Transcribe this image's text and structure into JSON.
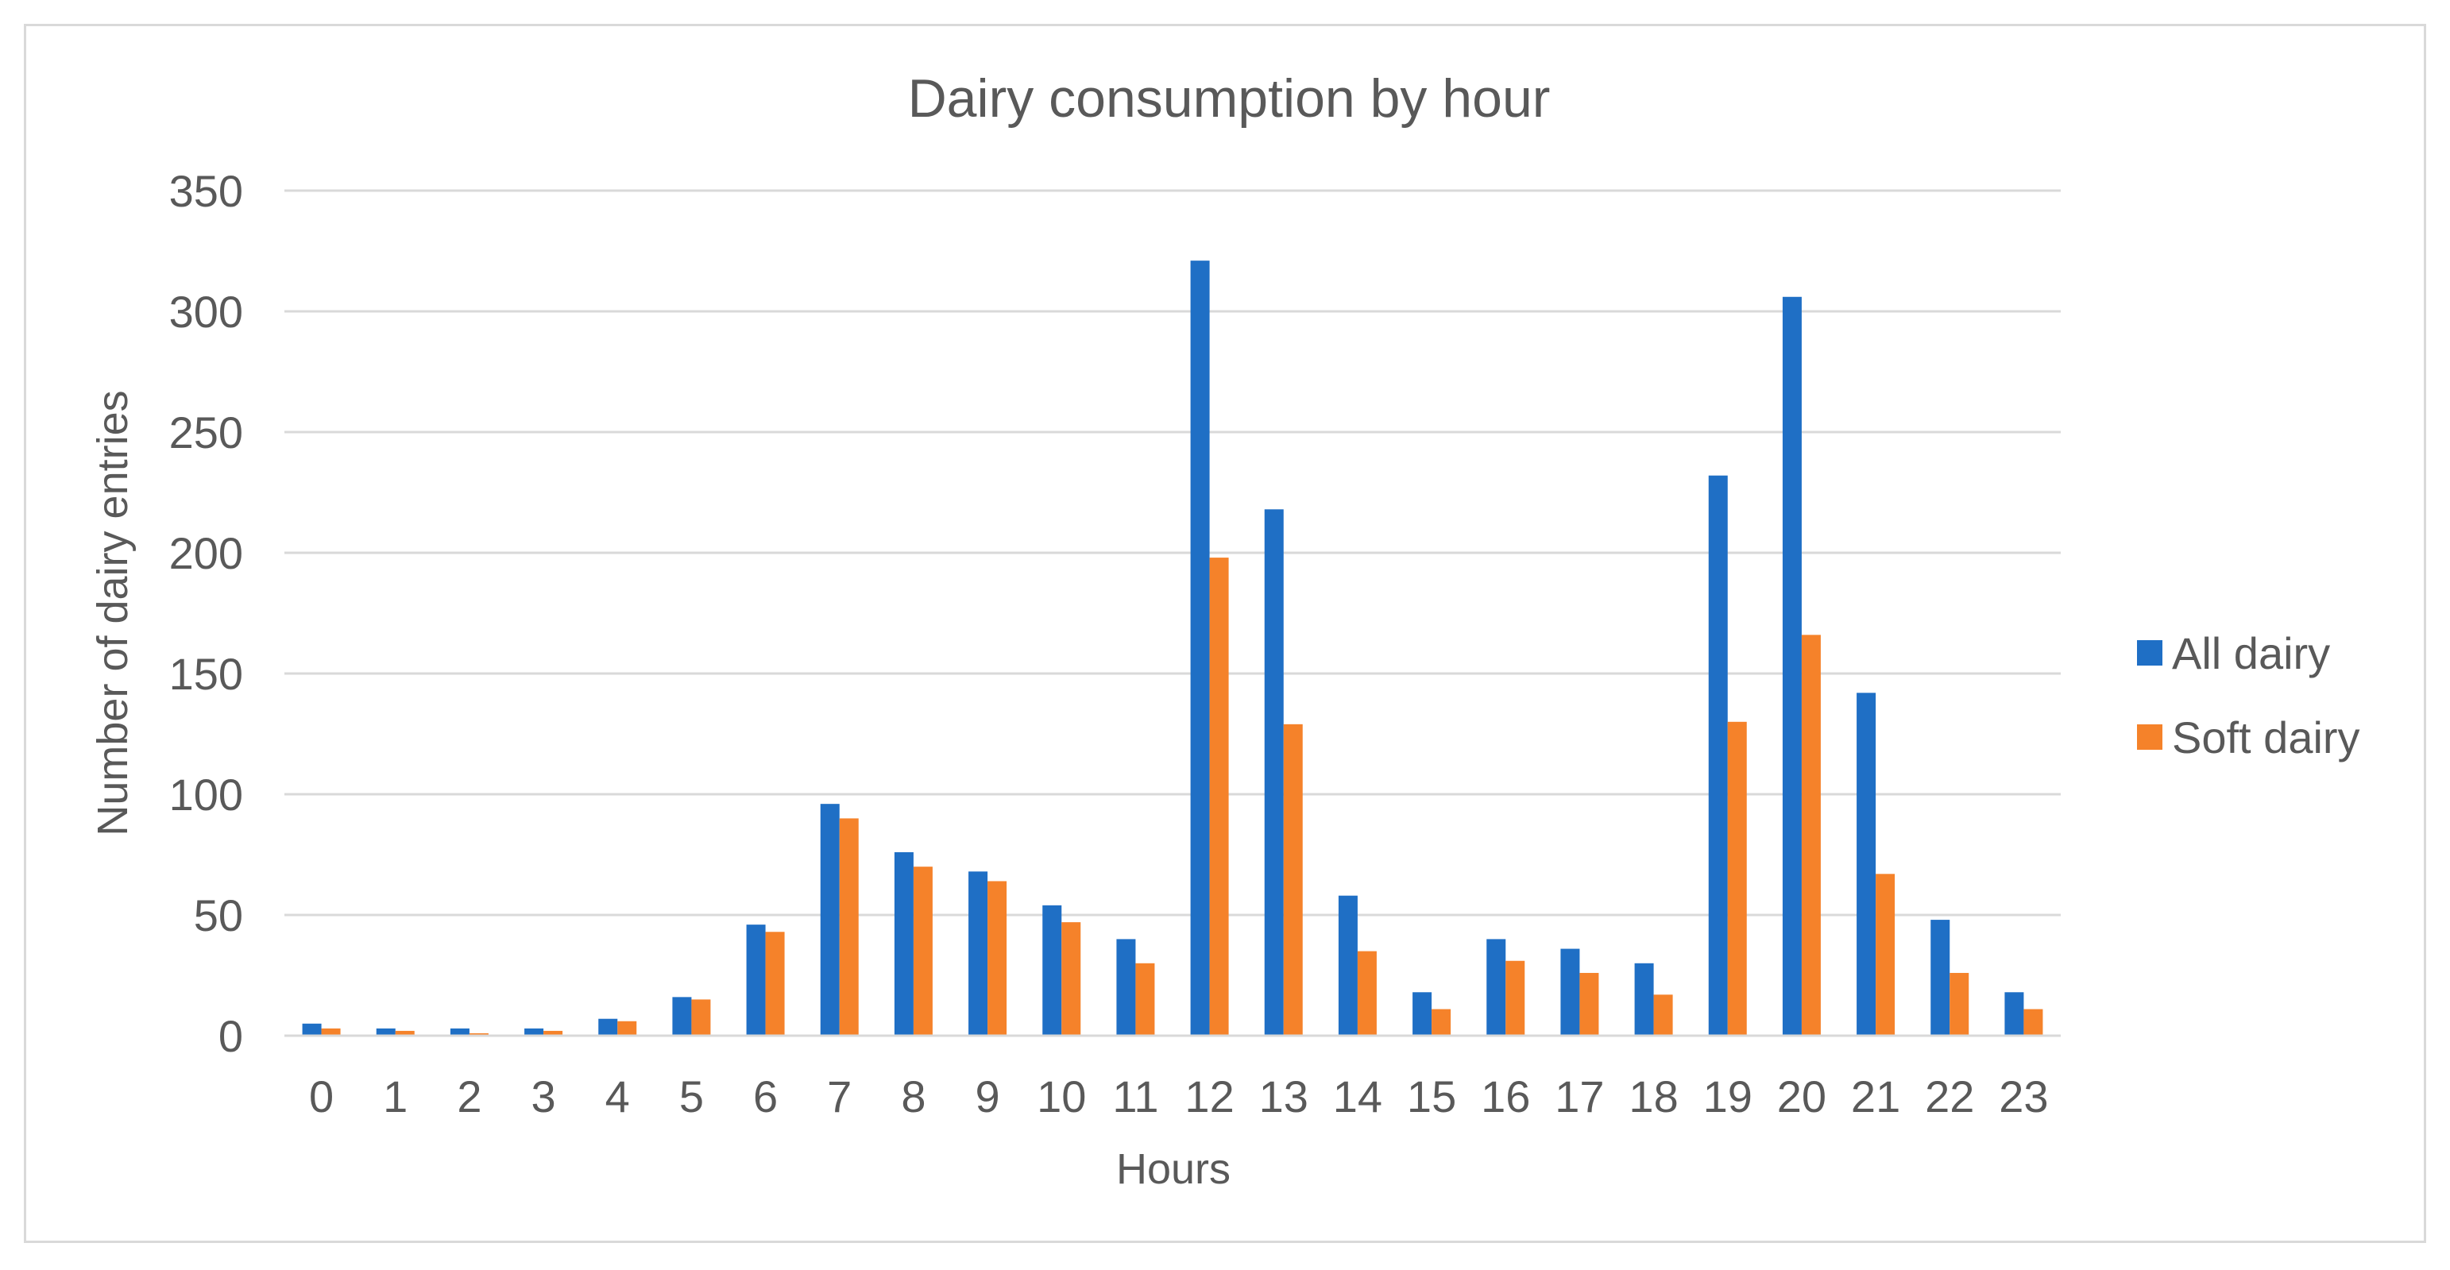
{
  "chart_data": {
    "type": "bar",
    "title": "Dairy consumption by hour",
    "xlabel": "Hours",
    "ylabel": "Number of dairy entries",
    "categories": [
      "0",
      "1",
      "2",
      "3",
      "4",
      "5",
      "6",
      "7",
      "8",
      "9",
      "10",
      "11",
      "12",
      "13",
      "14",
      "15",
      "16",
      "17",
      "18",
      "19",
      "20",
      "21",
      "22",
      "23"
    ],
    "series": [
      {
        "name": "All dairy",
        "color": "#1F6FC5",
        "values": [
          5,
          3,
          3,
          3,
          7,
          16,
          46,
          96,
          76,
          68,
          54,
          40,
          321,
          218,
          58,
          18,
          40,
          36,
          30,
          232,
          306,
          142,
          48,
          18
        ]
      },
      {
        "name": "Soft dairy",
        "color": "#F5822A",
        "values": [
          3,
          2,
          1,
          2,
          6,
          15,
          43,
          90,
          70,
          64,
          47,
          30,
          198,
          129,
          35,
          11,
          31,
          26,
          17,
          130,
          166,
          67,
          26,
          11
        ]
      }
    ],
    "ylim": [
      0,
      350
    ],
    "yticks": [
      0,
      50,
      100,
      150,
      200,
      250,
      300,
      350
    ],
    "grid": true,
    "legend_position": "right"
  }
}
